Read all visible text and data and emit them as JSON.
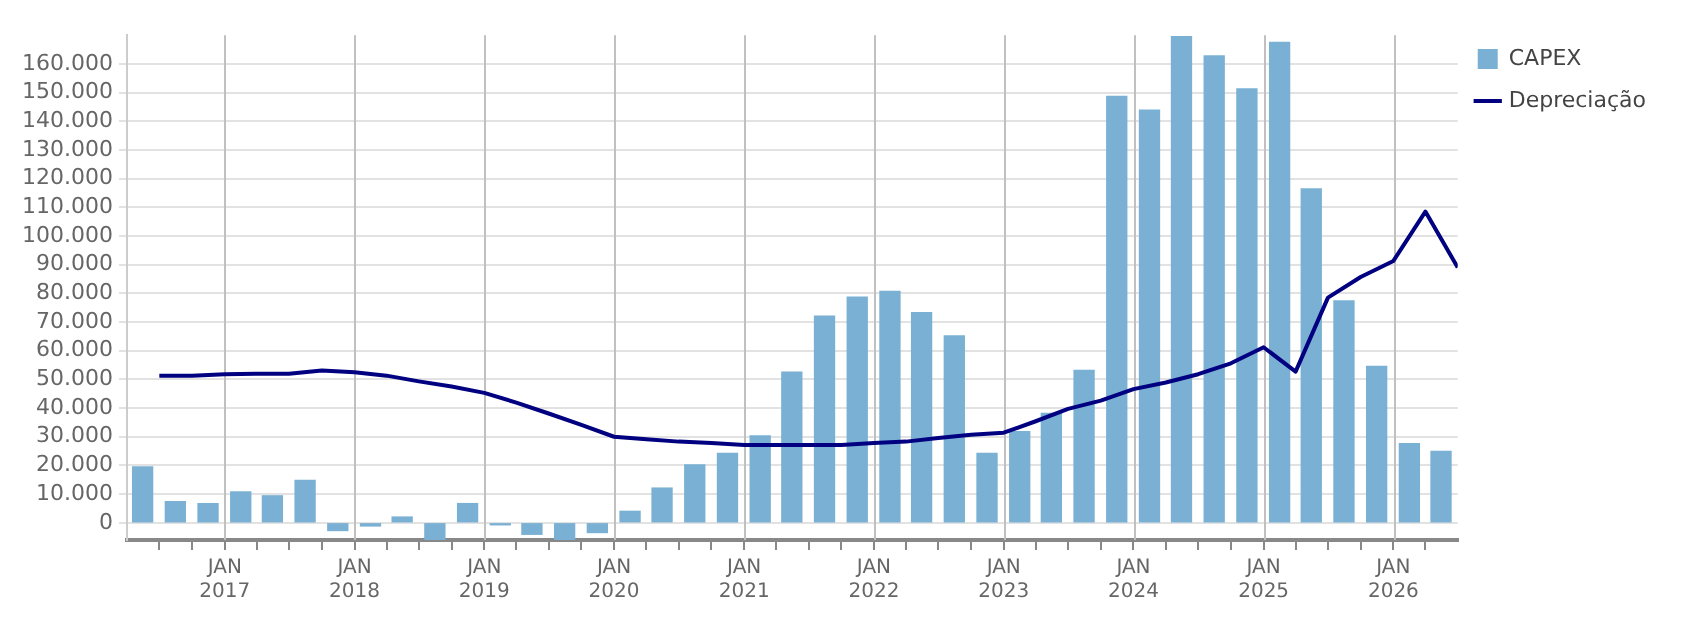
{
  "chart_data": {
    "type": "bar",
    "legend": "top right",
    "grid": true,
    "xlim": [
      "2016-04",
      "2026-07"
    ],
    "xticks": [
      {
        "value": "2016-07",
        "label": null
      },
      {
        "value": "2016-10",
        "label": null
      },
      {
        "value": "2017-01",
        "label": "JAN 2017"
      },
      {
        "value": "2017-04",
        "label": null
      },
      {
        "value": "2017-07",
        "label": null
      },
      {
        "value": "2017-10",
        "label": null
      },
      {
        "value": "2018-01",
        "label": "JAN 2018"
      },
      {
        "value": "2018-04",
        "label": null
      },
      {
        "value": "2018-07",
        "label": null
      },
      {
        "value": "2018-10",
        "label": null
      },
      {
        "value": "2019-01",
        "label": "JAN 2019"
      },
      {
        "value": "2019-04",
        "label": null
      },
      {
        "value": "2019-07",
        "label": null
      },
      {
        "value": "2019-10",
        "label": null
      },
      {
        "value": "2020-01",
        "label": "JAN 2020"
      },
      {
        "value": "2020-04",
        "label": null
      },
      {
        "value": "2020-07",
        "label": null
      },
      {
        "value": "2020-10",
        "label": null
      },
      {
        "value": "2021-01",
        "label": "JAN 2021"
      },
      {
        "value": "2021-04",
        "label": null
      },
      {
        "value": "2021-07",
        "label": null
      },
      {
        "value": "2021-10",
        "label": null
      },
      {
        "value": "2022-01",
        "label": "JAN 2022"
      },
      {
        "value": "2022-04",
        "label": null
      },
      {
        "value": "2022-07",
        "label": null
      },
      {
        "value": "2022-10",
        "label": null
      },
      {
        "value": "2023-01",
        "label": "JAN 2023"
      },
      {
        "value": "2023-04",
        "label": null
      },
      {
        "value": "2023-07",
        "label": null
      },
      {
        "value": "2023-10",
        "label": null
      },
      {
        "value": "2024-01",
        "label": "JAN 2024"
      },
      {
        "value": "2024-04",
        "label": null
      },
      {
        "value": "2024-07",
        "label": null
      },
      {
        "value": "2024-10",
        "label": null
      },
      {
        "value": "2025-01",
        "label": "JAN 2025"
      },
      {
        "value": "2025-04",
        "label": null
      },
      {
        "value": "2025-07",
        "label": null
      },
      {
        "value": "2025-10",
        "label": null
      },
      {
        "value": "2026-01",
        "label": "JAN 2026"
      },
      {
        "value": "2026-04",
        "label": null
      }
    ],
    "ylim": [
      -6000,
      170000
    ],
    "yticks": [
      0,
      {
        "value": 10000,
        "label": "10.000"
      },
      {
        "value": 20000,
        "label": "20.000"
      },
      {
        "value": 30000,
        "label": "30.000"
      },
      {
        "value": 40000,
        "label": "40.000"
      },
      {
        "value": 50000,
        "label": "50.000"
      },
      {
        "value": 60000,
        "label": "60.000"
      },
      {
        "value": 70000,
        "label": "70.000"
      },
      {
        "value": 80000,
        "label": "80.000"
      },
      {
        "value": 90000,
        "label": "90.000"
      },
      {
        "value": 100000,
        "label": "100.000"
      },
      {
        "value": 110000,
        "label": "110.000"
      },
      {
        "value": 120000,
        "label": "120.000"
      },
      {
        "value": 130000,
        "label": "130.000"
      },
      {
        "value": 140000,
        "label": "140.000"
      },
      {
        "value": 150000,
        "label": "150.000"
      },
      {
        "value": 160000,
        "label": "160.000"
      }
    ],
    "series": [
      {
        "name": "CAPEX",
        "color": "#7ab0d3",
        "x": [
          "2016-05-15",
          "2016-08-15",
          "2016-11-15",
          "2017-02-15",
          "2017-05-15",
          "2017-08-15",
          "2017-11-15",
          "2018-02-15",
          "2018-05-15",
          "2018-08-15",
          "2018-11-15",
          "2019-02-15",
          "2019-05-15",
          "2019-08-15",
          "2019-11-15",
          "2020-02-15",
          "2020-05-15",
          "2020-08-15",
          "2020-11-15",
          "2021-02-15",
          "2021-05-15",
          "2021-08-15",
          "2021-11-15",
          "2022-02-15",
          "2022-05-15",
          "2022-08-15",
          "2022-11-15",
          "2023-02-15",
          "2023-05-15",
          "2023-08-15",
          "2023-11-15",
          "2024-02-15",
          "2024-05-15",
          "2024-08-15",
          "2024-11-15",
          "2025-02-15",
          "2025-05-15",
          "2025-08-15",
          "2025-11-15",
          "2026-02-15",
          "2026-05-15"
        ],
        "values": [
          19500,
          7400,
          6700,
          10800,
          9400,
          14800,
          -2700,
          -1100,
          2000,
          -5800,
          6700,
          -700,
          -4000,
          -5800,
          -3400,
          4000,
          12100,
          20200,
          24200,
          30300,
          52500,
          72000,
          78700,
          80700,
          73300,
          65200,
          24200,
          31800,
          38100,
          53100,
          148700,
          143900,
          169500,
          162800,
          151300,
          167500,
          116400,
          77400,
          54500,
          27600,
          24900
        ]
      },
      {
        "name": "Depreciação",
        "type": "line",
        "color": "#000080",
        "x": [
          "2016-07",
          "2016-10",
          "2017-01",
          "2017-04",
          "2017-07",
          "2017-10",
          "2018-01",
          "2018-04",
          "2018-07",
          "2018-10",
          "2019-01",
          "2019-04",
          "2019-07",
          "2019-10",
          "2020-01",
          "2020-04",
          "2020-07",
          "2020-10",
          "2021-01",
          "2021-04",
          "2021-07",
          "2021-10",
          "2022-01",
          "2022-04",
          "2022-07",
          "2022-10",
          "2023-01",
          "2023-04",
          "2023-07",
          "2023-10",
          "2024-01",
          "2024-04",
          "2024-07",
          "2024-10",
          "2025-01",
          "2025-04",
          "2025-07",
          "2025-10",
          "2026-01",
          "2026-04",
          "2026-07"
        ],
        "values": [
          51300,
          51300,
          51800,
          52000,
          52000,
          53100,
          52500,
          51300,
          49300,
          47500,
          45300,
          41900,
          38100,
          34100,
          30000,
          29100,
          28300,
          27800,
          27100,
          27100,
          27100,
          27100,
          27800,
          28300,
          29600,
          30700,
          31400,
          35400,
          39700,
          42600,
          46600,
          48900,
          51800,
          55600,
          61200,
          52700,
          78500,
          85700,
          91300,
          108500,
          89000
        ]
      }
    ]
  }
}
